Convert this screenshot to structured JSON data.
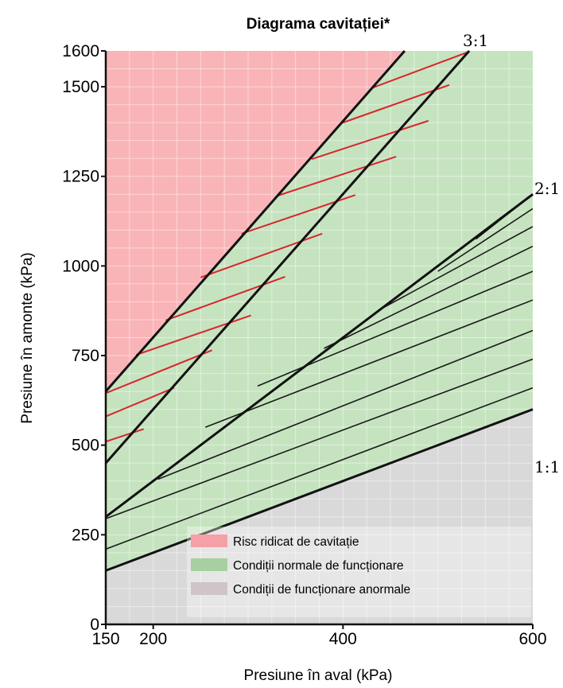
{
  "chart_data": {
    "type": "area",
    "title": "Diagrama cavitației*",
    "xlabel": "Presiune în aval (kPa)",
    "ylabel": "Presiune în amonte (kPa)",
    "xlim": [
      150,
      600
    ],
    "ylim": [
      0,
      1600
    ],
    "x_ticks": [
      150,
      200,
      400,
      600
    ],
    "y_ticks": [
      0,
      250,
      500,
      750,
      1000,
      1250,
      1500,
      1600
    ],
    "grid": true,
    "regions": [
      {
        "name": "Risc ridicat de cavitație",
        "color": "#f9b4b8"
      },
      {
        "name": "Condiții normale de funcționare",
        "color": "#c6e3c0"
      },
      {
        "name": "Condiții de funcționare anormale",
        "color": "#d9d9d9"
      }
    ],
    "ratio_lines": [
      {
        "label": "3:1",
        "points": [
          [
            150,
            450
          ],
          [
            533,
            1600
          ]
        ]
      },
      {
        "label": "2:1",
        "points": [
          [
            150,
            300
          ],
          [
            600,
            1200
          ]
        ]
      },
      {
        "label": "1:1",
        "points": [
          [
            150,
            150
          ],
          [
            600,
            600
          ]
        ]
      }
    ],
    "upper_boundary": {
      "points": [
        [
          150,
          650
        ],
        [
          465,
          1600
        ]
      ]
    },
    "legend_position": "bottom-right"
  }
}
